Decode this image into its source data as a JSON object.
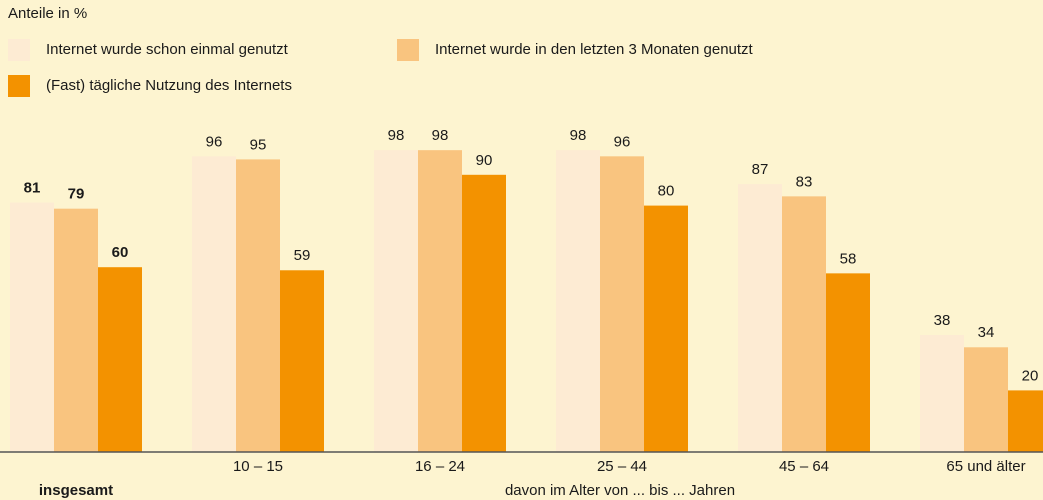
{
  "chart_data": {
    "type": "bar",
    "title": "Anteile in %",
    "x_label": "davon im Alter von ... bis ... Jahren",
    "categories": [
      "insgesamt",
      "10 – 15",
      "16 – 24",
      "25 – 44",
      "45 – 64",
      "65 und älter"
    ],
    "series": [
      {
        "name": "Internet wurde schon einmal genutzt",
        "color": "#fdebd3",
        "values": [
          81,
          96,
          98,
          98,
          87,
          38
        ]
      },
      {
        "name": "Internet wurde in den letzten 3 Monaten genutzt",
        "color": "#f9c47f",
        "values": [
          79,
          95,
          98,
          96,
          83,
          34
        ]
      },
      {
        "name": "(Fast) tägliche Nutzung des Internets",
        "color": "#f39200",
        "values": [
          60,
          59,
          90,
          80,
          58,
          20
        ]
      }
    ],
    "ylim": [
      0,
      100
    ]
  }
}
